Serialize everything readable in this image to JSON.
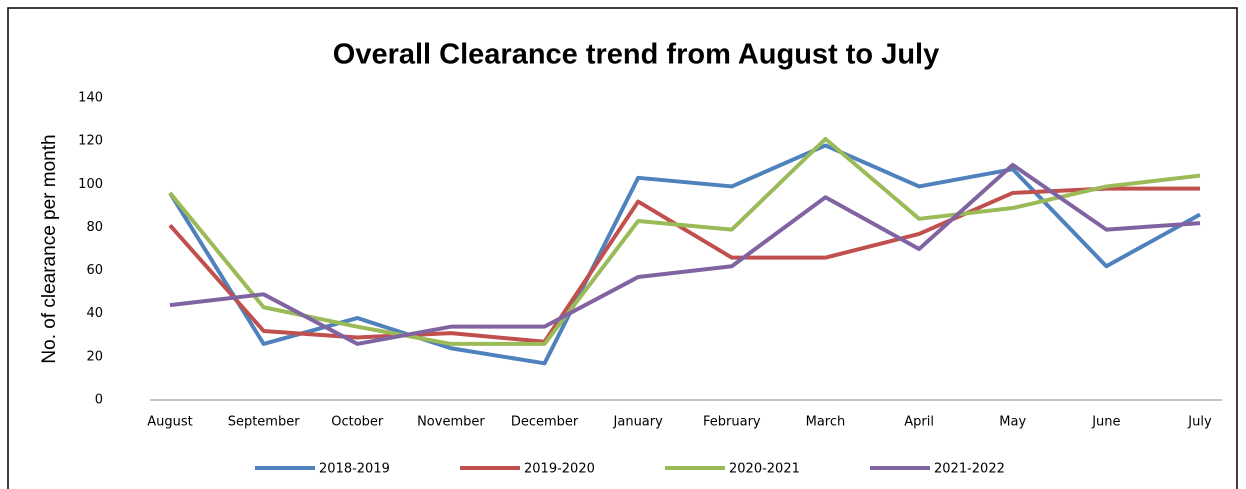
{
  "chart_data": {
    "type": "line",
    "title": "Overall Clearance trend from August to July",
    "y_label": "No. of clearance per month",
    "categories": [
      "August",
      "September",
      "October",
      "November",
      "December",
      "January",
      "February",
      "March",
      "April",
      "May",
      "June",
      "July"
    ],
    "series": [
      {
        "name": "2018-2019",
        "color": "#4f81bd",
        "values": [
          96,
          26,
          38,
          24,
          17,
          103,
          99,
          118,
          99,
          107,
          62,
          86
        ]
      },
      {
        "name": "2019-2020",
        "color": "#c0504d",
        "values": [
          81,
          32,
          29,
          31,
          27,
          92,
          66,
          66,
          77,
          96,
          98,
          98
        ]
      },
      {
        "name": "2020-2021",
        "color": "#9bbb59",
        "values": [
          96,
          43,
          34,
          26,
          26,
          83,
          79,
          121,
          84,
          89,
          99,
          104
        ]
      },
      {
        "name": "2021-2022",
        "color": "#8064a2",
        "values": [
          44,
          49,
          26,
          34,
          34,
          57,
          62,
          94,
          70,
          109,
          79,
          82
        ]
      }
    ],
    "ylim": [
      0,
      140
    ],
    "yticks": [
      0,
      20,
      40,
      60,
      80,
      100,
      120,
      140
    ],
    "grid": false,
    "legend": "bottom"
  }
}
